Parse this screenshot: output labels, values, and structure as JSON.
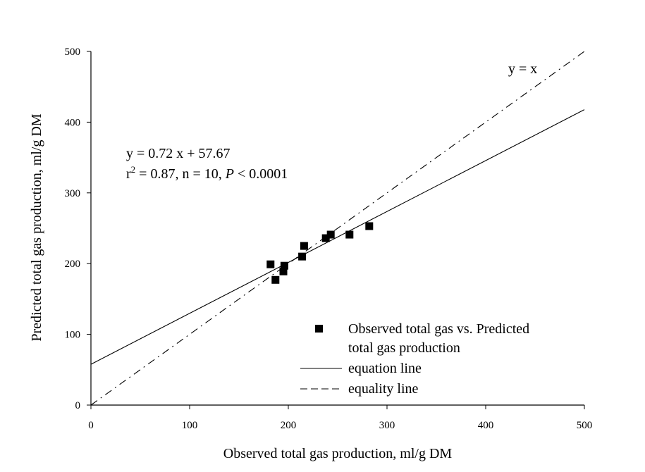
{
  "chart_data": {
    "type": "scatter",
    "xlabel": "Observed total gas production, ml/g DM",
    "ylabel": "Predicted total gas production, ml/g DM",
    "xlim": [
      0,
      500
    ],
    "ylim": [
      0,
      500
    ],
    "xticks": [
      0,
      100,
      200,
      300,
      400,
      500
    ],
    "yticks": [
      0,
      100,
      200,
      300,
      400,
      500
    ],
    "grid": false,
    "legend_position": "bottom-right",
    "series": [
      {
        "name": "Observed total gas vs. Predicted total gas production",
        "marker": "square",
        "color": "#000000",
        "x": [
          182,
          187,
          195,
          196,
          214,
          216,
          238,
          243,
          262,
          282
        ],
        "y": [
          199,
          177,
          189,
          197,
          210,
          225,
          236,
          241,
          241,
          253
        ]
      }
    ],
    "lines": [
      {
        "name": "equation line",
        "style": "solid",
        "slope": 0.72,
        "intercept": 57.67
      },
      {
        "name": "equality line",
        "style": "dash-dot",
        "slope": 1,
        "intercept": 0
      }
    ],
    "annotations": {
      "equation": "y = 0.72 x + 57.67",
      "stats_r": "r",
      "stats_sup": "2",
      "stats_mid": " = 0.87, n = 10, ",
      "stats_p": "P",
      "stats_tail": " < 0.0001",
      "identity_label": "y = x"
    },
    "legend": {
      "scatter_line1": "Observed total gas vs. Predicted",
      "scatter_line2": "total gas production",
      "equation_line": "equation line",
      "equality_line": "equality line"
    }
  }
}
